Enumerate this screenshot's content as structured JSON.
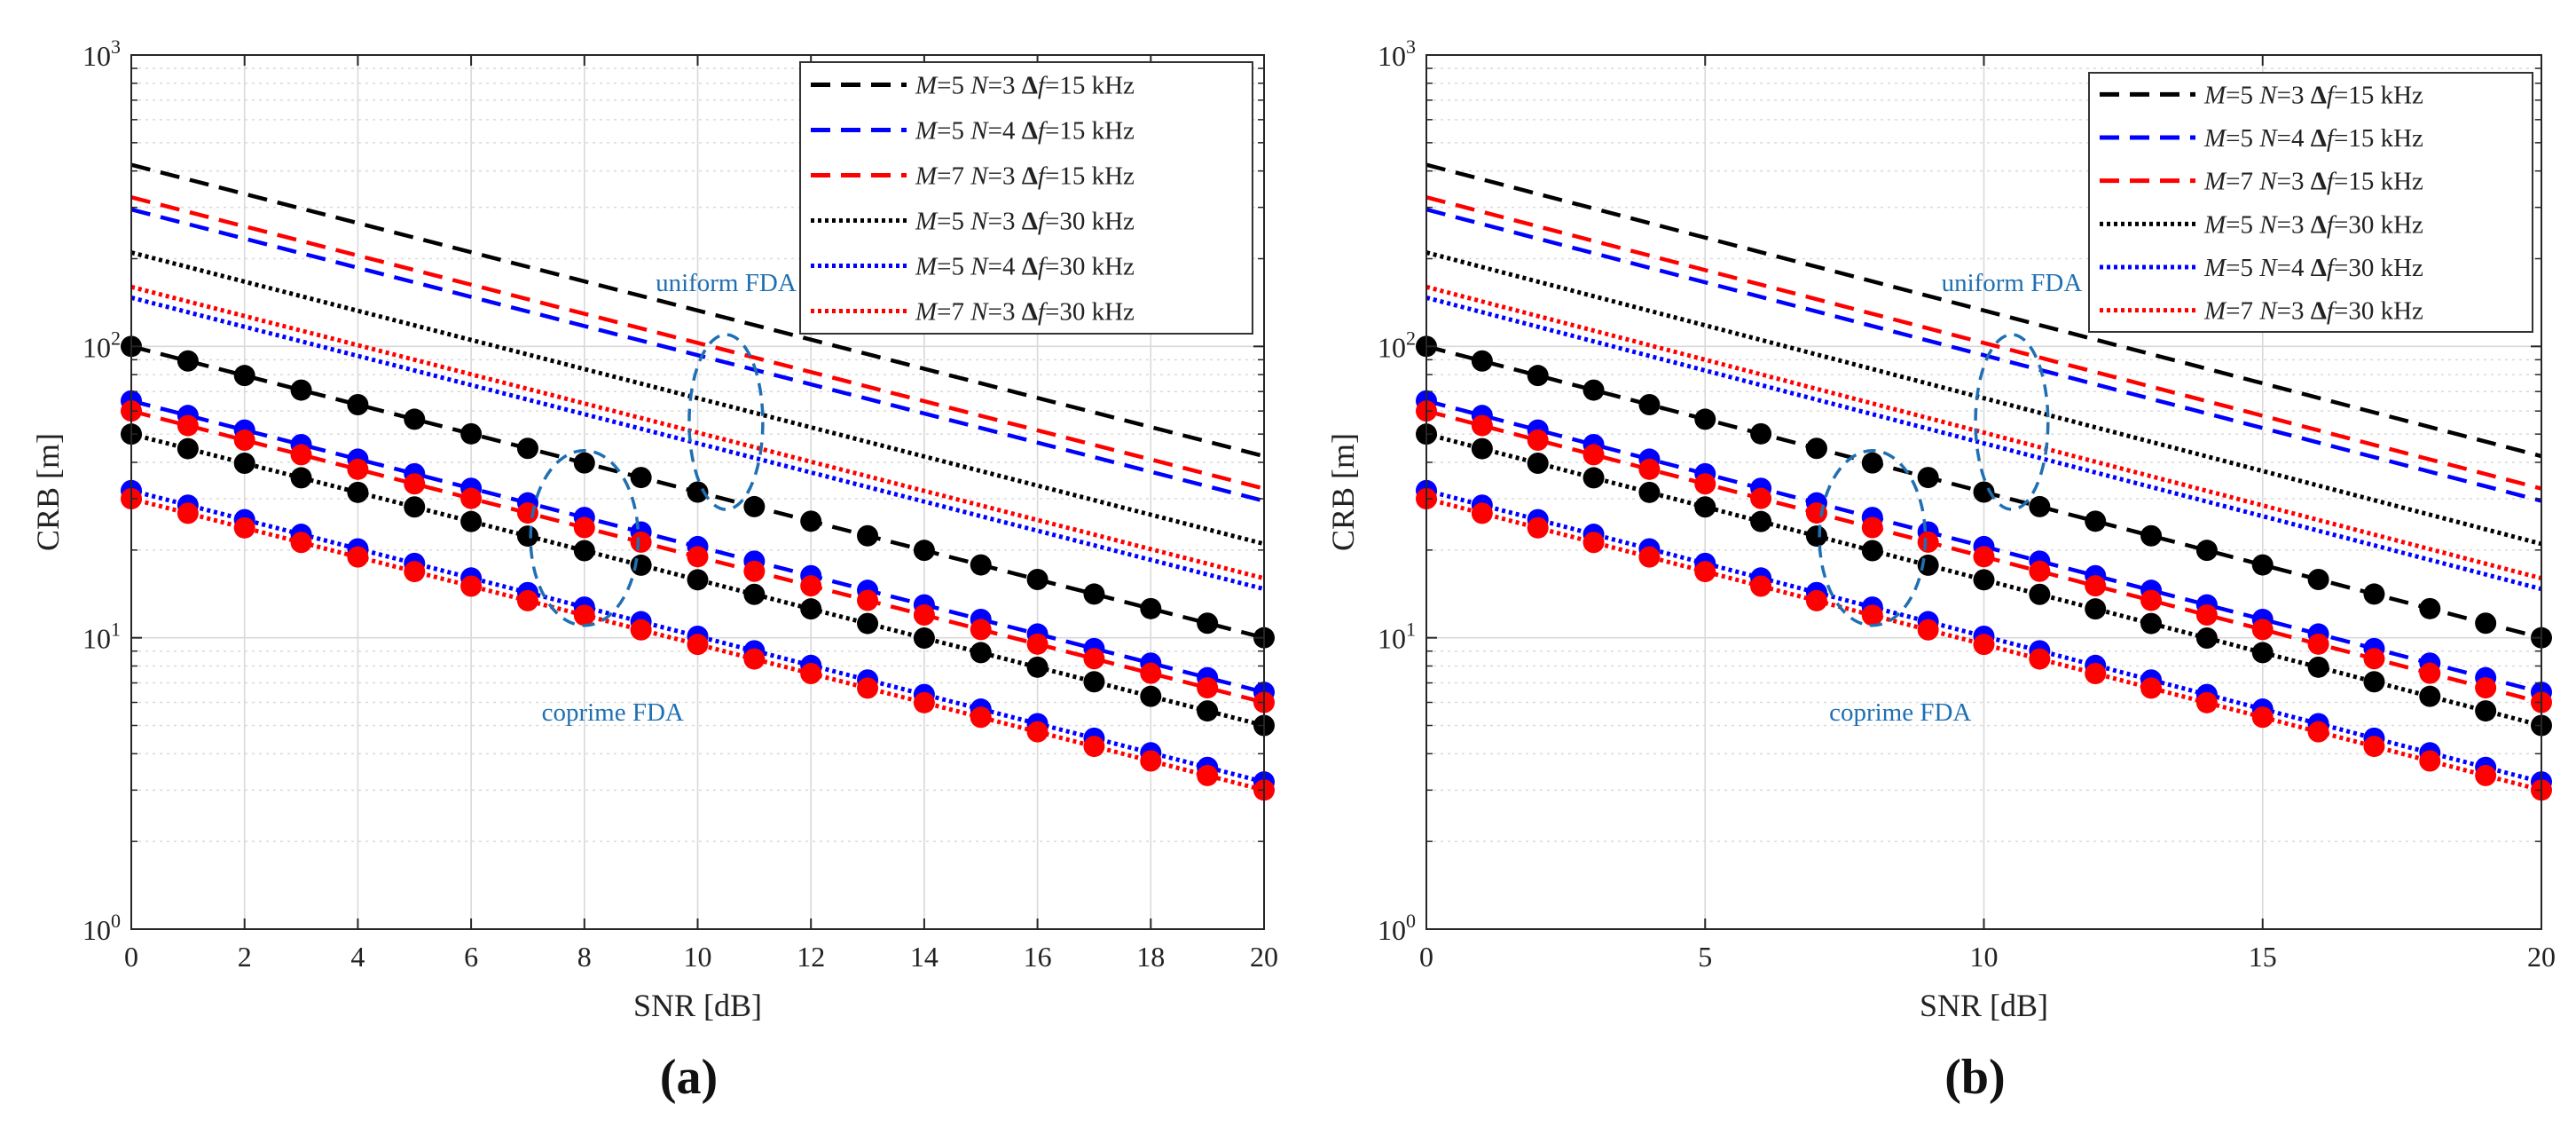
{
  "chart_data": [
    {
      "type": "line",
      "panel_label": "(a)",
      "xlabel": "SNR [dB]",
      "ylabel": "CRB [m]",
      "yscale": "log",
      "xlim": [
        0,
        20
      ],
      "ylim": [
        1,
        1000
      ],
      "xticks": [
        0,
        2,
        4,
        6,
        8,
        10,
        12,
        14,
        16,
        18,
        20
      ],
      "xtick_labels": [
        "0",
        "2",
        "4",
        "6",
        "8",
        "10",
        "12",
        "14",
        "16",
        "18",
        "20"
      ],
      "yticks": [
        1,
        10,
        100,
        1000
      ],
      "ytick_labels": [
        [
          "10",
          "0"
        ],
        [
          "10",
          "1"
        ],
        [
          "10",
          "2"
        ],
        [
          "10",
          "3"
        ]
      ],
      "grid": true,
      "legend_position": "top-right",
      "annotations": [
        {
          "text": "uniform FDA",
          "x": 10.5,
          "y": 155
        },
        {
          "text": "coprime FDA",
          "x": 8.5,
          "y": 5.2
        }
      ],
      "series": [
        {
          "name": "uniform M=5 N=3 Δf=15 kHz",
          "legend": [
            "M",
            "=5 ",
            "N",
            "=3 Δ",
            "f",
            "=15 kHz"
          ],
          "color": "#000000",
          "style": "dash",
          "group": "uniform",
          "y0": 420,
          "decades_per_20dB": 1.0
        },
        {
          "name": "uniform M=5 N=4 Δf=15 kHz",
          "legend": [
            "M",
            "=5 ",
            "N",
            "=4 Δ",
            "f",
            "=15 kHz"
          ],
          "color": "#0000ff",
          "style": "dash",
          "group": "uniform",
          "y0": 295,
          "decades_per_20dB": 1.0
        },
        {
          "name": "uniform M=7 N=3 Δf=15 kHz",
          "legend": [
            "M",
            "=7 ",
            "N",
            "=3 Δ",
            "f",
            "=15 kHz"
          ],
          "color": "#ff0000",
          "style": "dash",
          "group": "uniform",
          "y0": 325,
          "decades_per_20dB": 1.0
        },
        {
          "name": "uniform M=5 N=3 Δf=30 kHz",
          "legend": [
            "M",
            "=5 ",
            "N",
            "=3 Δ",
            "f",
            "=30 kHz"
          ],
          "color": "#000000",
          "style": "dot",
          "group": "uniform",
          "y0": 210,
          "decades_per_20dB": 1.0
        },
        {
          "name": "uniform M=5 N=4 Δf=30 kHz",
          "legend": [
            "M",
            "=5 ",
            "N",
            "=4 Δ",
            "f",
            "=30 kHz"
          ],
          "color": "#0000ff",
          "style": "dot",
          "group": "uniform",
          "y0": 147,
          "decades_per_20dB": 1.0
        },
        {
          "name": "uniform M=7 N=3 Δf=30 kHz",
          "legend": [
            "M",
            "=7 ",
            "N",
            "=3 Δ",
            "f",
            "=30 kHz"
          ],
          "color": "#ff0000",
          "style": "dot",
          "group": "uniform",
          "y0": 160,
          "decades_per_20dB": 1.0
        },
        {
          "name": "coprime M=5 N=3 Δf=15 kHz",
          "color": "#000000",
          "style": "dash",
          "group": "coprime",
          "marker": true,
          "y0": 100,
          "decades_per_20dB": 1.0
        },
        {
          "name": "coprime M=5 N=4 Δf=15 kHz",
          "color": "#0000ff",
          "style": "dash",
          "group": "coprime",
          "marker": true,
          "y0": 65,
          "decades_per_20dB": 1.0
        },
        {
          "name": "coprime M=7 N=3 Δf=15 kHz",
          "color": "#ff0000",
          "style": "dash",
          "group": "coprime",
          "marker": true,
          "y0": 60,
          "decades_per_20dB": 1.0
        },
        {
          "name": "coprime M=5 N=3 Δf=30 kHz",
          "color": "#000000",
          "style": "dot",
          "group": "coprime",
          "marker": true,
          "y0": 50,
          "decades_per_20dB": 1.0
        },
        {
          "name": "coprime M=5 N=4 Δf=30 kHz",
          "color": "#0000ff",
          "style": "dot",
          "group": "coprime",
          "marker": true,
          "y0": 32,
          "decades_per_20dB": 1.0
        },
        {
          "name": "coprime M=7 N=3 Δf=30 kHz",
          "color": "#ff0000",
          "style": "dot",
          "group": "coprime",
          "marker": true,
          "y0": 30,
          "decades_per_20dB": 1.0
        }
      ],
      "ellipses": [
        {
          "label": "uniform",
          "x": 10.5,
          "y": 55,
          "rx_data": 0.65,
          "ry_decades": 0.3
        },
        {
          "label": "coprime",
          "x": 8.0,
          "y": 22,
          "rx_data": 0.95,
          "ry_decades": 0.3
        }
      ]
    },
    {
      "type": "line",
      "panel_label": "(b)",
      "xlabel": "SNR [dB]",
      "ylabel": "CRB [m]",
      "yscale": "log",
      "xlim": [
        0,
        20
      ],
      "ylim": [
        1,
        1000
      ],
      "xticks": [
        0,
        5,
        10,
        15,
        20
      ],
      "xtick_labels": [
        "0",
        "5",
        "10",
        "15",
        "20"
      ],
      "yticks": [
        1,
        10,
        100,
        1000
      ],
      "ytick_labels": [
        [
          "10",
          "0"
        ],
        [
          "10",
          "1"
        ],
        [
          "10",
          "2"
        ],
        [
          "10",
          "3"
        ]
      ],
      "grid": true,
      "legend_position": "top-right",
      "annotations": [
        {
          "text": "uniform FDA",
          "x": 10.5,
          "y": 155
        },
        {
          "text": "coprime FDA",
          "x": 8.5,
          "y": 5.2
        }
      ],
      "series": [
        {
          "name": "uniform M=5 N=3 Δf=15 kHz",
          "legend": [
            "M",
            "=5 ",
            "N",
            "=3 Δ",
            "f",
            "=15 kHz"
          ],
          "color": "#000000",
          "style": "dash",
          "group": "uniform",
          "y0": 420,
          "decades_per_20dB": 1.0
        },
        {
          "name": "uniform M=5 N=4 Δf=15 kHz",
          "legend": [
            "M",
            "=5 ",
            "N",
            "=4 Δ",
            "f",
            "=15 kHz"
          ],
          "color": "#0000ff",
          "style": "dash",
          "group": "uniform",
          "y0": 295,
          "decades_per_20dB": 1.0
        },
        {
          "name": "uniform M=7 N=3 Δf=15 kHz",
          "legend": [
            "M",
            "=7 ",
            "N",
            "=3 Δ",
            "f",
            "=15 kHz"
          ],
          "color": "#ff0000",
          "style": "dash",
          "group": "uniform",
          "y0": 325,
          "decades_per_20dB": 1.0
        },
        {
          "name": "uniform M=5 N=3 Δf=30 kHz",
          "legend": [
            "M",
            "=5 ",
            "N",
            "=3 Δ",
            "f",
            "=30 kHz"
          ],
          "color": "#000000",
          "style": "dot",
          "group": "uniform",
          "y0": 210,
          "decades_per_20dB": 1.0
        },
        {
          "name": "uniform M=5 N=4 Δf=30 kHz",
          "legend": [
            "M",
            "=5 ",
            "N",
            "=4 Δ",
            "f",
            "=30 kHz"
          ],
          "color": "#0000ff",
          "style": "dot",
          "group": "uniform",
          "y0": 147,
          "decades_per_20dB": 1.0
        },
        {
          "name": "uniform M=7 N=3 Δf=30 kHz",
          "legend": [
            "M",
            "=7 ",
            "N",
            "=3 Δ",
            "f",
            "=30 kHz"
          ],
          "color": "#ff0000",
          "style": "dot",
          "group": "uniform",
          "y0": 160,
          "decades_per_20dB": 1.0
        },
        {
          "name": "coprime M=5 N=3 Δf=15 kHz",
          "color": "#000000",
          "style": "dash",
          "group": "coprime",
          "marker": true,
          "y0": 100,
          "decades_per_20dB": 1.0
        },
        {
          "name": "coprime M=5 N=4 Δf=15 kHz",
          "color": "#0000ff",
          "style": "dash",
          "group": "coprime",
          "marker": true,
          "y0": 65,
          "decades_per_20dB": 1.0
        },
        {
          "name": "coprime M=7 N=3 Δf=15 kHz",
          "color": "#ff0000",
          "style": "dash",
          "group": "coprime",
          "marker": true,
          "y0": 60,
          "decades_per_20dB": 1.0
        },
        {
          "name": "coprime M=5 N=3 Δf=30 kHz",
          "color": "#000000",
          "style": "dot",
          "group": "coprime",
          "marker": true,
          "y0": 50,
          "decades_per_20dB": 1.0
        },
        {
          "name": "coprime M=5 N=4 Δf=30 kHz",
          "color": "#0000ff",
          "style": "dot",
          "group": "coprime",
          "marker": true,
          "y0": 32,
          "decades_per_20dB": 1.0
        },
        {
          "name": "coprime M=7 N=3 Δf=30 kHz",
          "color": "#ff0000",
          "style": "dot",
          "group": "coprime",
          "marker": true,
          "y0": 30,
          "decades_per_20dB": 1.0
        }
      ],
      "ellipses": [
        {
          "label": "uniform",
          "x": 10.5,
          "y": 55,
          "rx_data": 0.65,
          "ry_decades": 0.3
        },
        {
          "label": "coprime",
          "x": 8.0,
          "y": 22,
          "rx_data": 0.95,
          "ry_decades": 0.3
        }
      ]
    }
  ],
  "colors": {
    "annotation": "#1f6fb2",
    "grid": "#d9d9d9",
    "axis": "#262626"
  }
}
